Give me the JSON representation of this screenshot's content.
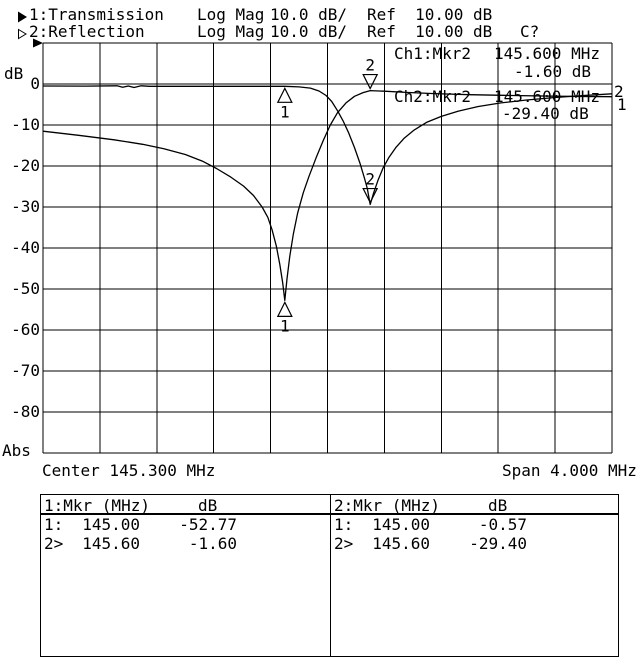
{
  "colors": {
    "foreground": "#000000",
    "background": "#ffffff"
  },
  "header": {
    "rows": [
      {
        "icon": "filled-right-triangle-icon",
        "label": "1:Transmission",
        "format": "Log Mag",
        "scale": "10.0 dB/",
        "ref": "Ref  10.00 dB",
        "status": ""
      },
      {
        "icon": "open-right-triangle-icon",
        "label": "2:Reflection",
        "format": "Log Mag",
        "scale": "10.0 dB/",
        "ref": "Ref  10.00 dB",
        "status": "C?"
      }
    ]
  },
  "plot": {
    "y_axis_unit": "dB",
    "y_axis_bottom": "Abs",
    "y_ticks": [
      0,
      -10,
      -20,
      -30,
      -40,
      -50,
      -60,
      -70,
      -80
    ],
    "readout": {
      "ch1_label": "Ch1:Mkr2",
      "ch1_freq": "145.600 MHz",
      "ch1_value": "-1.60 dB",
      "ch2_label": "Ch2:Mkr2",
      "ch2_freq": "145.600 MHz",
      "ch2_value": "-29.40 dB"
    },
    "trace_end_labels": [
      "2",
      "1"
    ],
    "center": "Center 145.300 MHz",
    "span": "Span 4.000 MHz"
  },
  "marker_table": {
    "left": {
      "title": "1:Mkr (MHz)",
      "unit": "dB",
      "rows": [
        [
          "1:",
          "145.00",
          "-52.77"
        ],
        [
          "2>",
          "145.60",
          "-1.60"
        ]
      ]
    },
    "right": {
      "title": "2:Mkr (MHz)",
      "unit": "dB",
      "rows": [
        [
          "1:",
          "145.00",
          "-0.57"
        ],
        [
          "2>",
          "145.60",
          "-29.40"
        ]
      ]
    }
  },
  "chart_data": {
    "type": "line",
    "title": "",
    "x_unit": "MHz",
    "y_unit": "dB",
    "x_range": [
      143.3,
      147.3
    ],
    "x_step": 0.4,
    "y_range": [
      -90,
      10
    ],
    "y_step": 10,
    "center_MHz": 145.3,
    "span_MHz": 4.0,
    "scale_dB_per_div": 10.0,
    "ref_dB": 10.0,
    "grid": true,
    "series": [
      {
        "name": "1:Transmission",
        "points": [
          [
            143.3,
            -11.5
          ],
          [
            143.55,
            -12.5
          ],
          [
            143.8,
            -13.6
          ],
          [
            144.0,
            -14.7
          ],
          [
            144.15,
            -15.8
          ],
          [
            144.3,
            -17.2
          ],
          [
            144.42,
            -18.8
          ],
          [
            144.52,
            -20.6
          ],
          [
            144.62,
            -22.7
          ],
          [
            144.71,
            -24.9
          ],
          [
            144.78,
            -27.2
          ],
          [
            144.84,
            -30.0
          ],
          [
            144.88,
            -32.5
          ],
          [
            144.91,
            -35.5
          ],
          [
            144.94,
            -39.5
          ],
          [
            144.965,
            -44.0
          ],
          [
            144.985,
            -48.5
          ],
          [
            145.0,
            -52.77
          ],
          [
            145.015,
            -47.5
          ],
          [
            145.035,
            -42.0
          ],
          [
            145.06,
            -36.5
          ],
          [
            145.09,
            -31.5
          ],
          [
            145.13,
            -26.5
          ],
          [
            145.17,
            -22.5
          ],
          [
            145.22,
            -18.0
          ],
          [
            145.27,
            -13.8
          ],
          [
            145.32,
            -10.0
          ],
          [
            145.37,
            -7.0
          ],
          [
            145.43,
            -4.6
          ],
          [
            145.49,
            -3.0
          ],
          [
            145.55,
            -2.1
          ],
          [
            145.6,
            -1.6
          ],
          [
            145.7,
            -1.75
          ],
          [
            145.85,
            -2.05
          ],
          [
            146.05,
            -2.35
          ],
          [
            146.3,
            -2.6
          ],
          [
            146.6,
            -2.8
          ],
          [
            146.95,
            -3.0
          ],
          [
            147.3,
            -3.1
          ]
        ]
      },
      {
        "name": "2:Reflection",
        "points": [
          [
            143.3,
            -0.5
          ],
          [
            143.6,
            -0.52
          ],
          [
            143.82,
            -0.45
          ],
          [
            143.86,
            -0.8
          ],
          [
            143.9,
            -0.5
          ],
          [
            143.94,
            -0.85
          ],
          [
            143.99,
            -0.45
          ],
          [
            144.05,
            -0.55
          ],
          [
            144.4,
            -0.57
          ],
          [
            144.8,
            -0.57
          ],
          [
            145.0,
            -0.57
          ],
          [
            145.1,
            -0.7
          ],
          [
            145.18,
            -1.0
          ],
          [
            145.24,
            -1.7
          ],
          [
            145.29,
            -2.8
          ],
          [
            145.33,
            -4.3
          ],
          [
            145.37,
            -6.5
          ],
          [
            145.41,
            -9.0
          ],
          [
            145.45,
            -12.0
          ],
          [
            145.49,
            -15.5
          ],
          [
            145.53,
            -19.5
          ],
          [
            145.56,
            -23.0
          ],
          [
            145.58,
            -25.5
          ],
          [
            145.6,
            -29.4
          ],
          [
            145.625,
            -26.5
          ],
          [
            145.655,
            -23.5
          ],
          [
            145.69,
            -20.5
          ],
          [
            145.73,
            -18.0
          ],
          [
            145.78,
            -15.5
          ],
          [
            145.84,
            -13.2
          ],
          [
            145.91,
            -11.2
          ],
          [
            146.0,
            -9.3
          ],
          [
            146.1,
            -7.9
          ],
          [
            146.22,
            -6.6
          ],
          [
            146.36,
            -5.5
          ],
          [
            146.52,
            -4.6
          ],
          [
            146.7,
            -3.9
          ],
          [
            146.9,
            -3.3
          ],
          [
            147.1,
            -2.8
          ],
          [
            147.3,
            -2.4
          ]
        ]
      }
    ],
    "markers": [
      {
        "channel": 1,
        "n": "1",
        "freq_MHz": 145.0,
        "dB": -52.77,
        "pointer": "up"
      },
      {
        "channel": 1,
        "n": "2",
        "freq_MHz": 145.6,
        "dB": -1.6,
        "pointer": "down"
      },
      {
        "channel": 2,
        "n": "1",
        "freq_MHz": 145.0,
        "dB": -0.57,
        "pointer": "up"
      },
      {
        "channel": 2,
        "n": "2",
        "freq_MHz": 145.6,
        "dB": -29.4,
        "pointer": "down"
      }
    ]
  }
}
